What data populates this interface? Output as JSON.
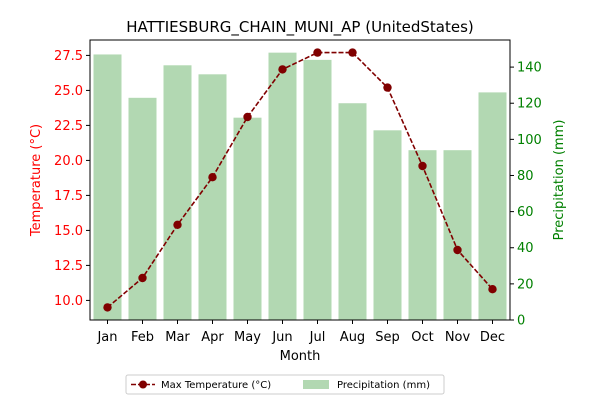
{
  "chart_data": {
    "type": "bar",
    "title": "HATTIESBURG_CHAIN_MUNI_AP (UnitedStates)",
    "xlabel": "Month",
    "ylabel_left": "Temperature (°C)",
    "ylabel_right": "Precipitation (mm)",
    "categories": [
      "Jan",
      "Feb",
      "Mar",
      "Apr",
      "May",
      "Jun",
      "Jul",
      "Aug",
      "Sep",
      "Oct",
      "Nov",
      "Dec"
    ],
    "ylim_left": [
      8.6,
      28.6
    ],
    "ylim_right": [
      0,
      155
    ],
    "yticks_left": [
      "10.0",
      "12.5",
      "15.0",
      "17.5",
      "20.0",
      "22.5",
      "25.0",
      "27.5"
    ],
    "yticks_right": [
      "0",
      "20",
      "40",
      "60",
      "80",
      "100",
      "120",
      "140"
    ],
    "series": [
      {
        "name": "Max Temperature (°C)",
        "kind": "line",
        "axis": "left",
        "color": "#800000",
        "values": [
          9.5,
          11.6,
          15.4,
          18.8,
          23.1,
          26.5,
          27.7,
          27.7,
          25.2,
          19.6,
          13.6,
          10.8
        ]
      },
      {
        "name": "Precipitation (mm)",
        "kind": "bar",
        "axis": "right",
        "color": "#b2d8b2",
        "values": [
          147,
          123,
          141,
          136,
          112,
          148,
          144,
          120,
          105,
          94,
          94,
          126
        ]
      }
    ],
    "legend_position": "bottom-center",
    "left_axis_color": "#ff0000",
    "right_axis_color": "#008000",
    "grid": false
  }
}
